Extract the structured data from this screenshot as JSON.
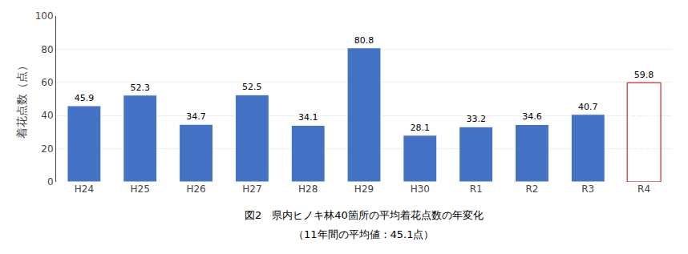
{
  "chart_data": {
    "type": "bar",
    "title": "図2　県内ヒノキ林40箇所の平均着花点数の年変化",
    "subtitle": "（11年間の平均値：45.1点）",
    "ylabel": "着花点数（点）",
    "categories": [
      "H24",
      "H25",
      "H26",
      "H27",
      "H28",
      "H29",
      "H30",
      "R1",
      "R2",
      "R3",
      "R4"
    ],
    "values": [
      45.9,
      52.3,
      34.7,
      52.5,
      34.1,
      80.8,
      28.1,
      33.2,
      34.6,
      40.7,
      59.8
    ],
    "colors": [
      "#4472c4",
      "#4472c4",
      "#4472c4",
      "#4472c4",
      "#4472c4",
      "#4472c4",
      "#4472c4",
      "#4472c4",
      "#4472c4",
      "#4472c4",
      "#c00000"
    ],
    "ylim": [
      0,
      100
    ],
    "yticks": [
      0,
      20,
      40,
      60,
      80,
      100
    ],
    "grid": true,
    "data_labels": true
  }
}
